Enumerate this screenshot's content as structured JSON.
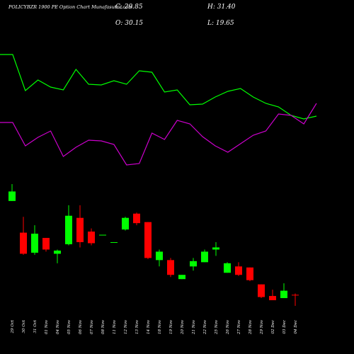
{
  "chart_data": {
    "type": "candlestick",
    "title": "POLICYBZR 1900 PE Option Chart Munafasutra.com",
    "annotations": [
      "C: 29.85",
      "O: 30.15",
      "H: 31.40",
      "L: 19.65"
    ],
    "categories": [
      "29 Oct",
      "30 Oct",
      "31 Oct",
      "01 Nov",
      "04 Nov",
      "05 Nov",
      "06 Nov",
      "07 Nov",
      "08 Nov",
      "11 Nov",
      "12 Nov",
      "13 Nov",
      "14 Nov",
      "18 Nov",
      "19 Nov",
      "20 Nov",
      "21 Nov",
      "22 Nov",
      "25 Nov",
      "26 Nov",
      "27 Nov",
      "28 Nov",
      "29 Nov",
      "02 Dec",
      "03 Dec",
      "04 Dec"
    ],
    "open": [
      119,
      89,
      70,
      84,
      69,
      78,
      103,
      90,
      87,
      80,
      92,
      107,
      99,
      63,
      63,
      45,
      57,
      61,
      73,
      51,
      57,
      56,
      40,
      29,
      27,
      30.15
    ],
    "high": [
      135,
      104,
      96,
      84,
      73,
      115,
      115,
      93,
      87,
      80,
      104,
      108,
      99,
      73,
      65,
      49,
      65,
      73,
      80,
      61,
      61,
      56,
      40,
      35,
      41,
      31.4
    ],
    "low": [
      119,
      68,
      68,
      71,
      60,
      77,
      75,
      77,
      87,
      80,
      91,
      96,
      64,
      57,
      47,
      45,
      53,
      61,
      67,
      51,
      48,
      43,
      27,
      25,
      27,
      19.65
    ],
    "close": [
      128,
      69,
      88,
      73,
      72,
      105,
      80,
      79,
      87,
      80,
      103,
      98,
      65,
      71,
      49,
      49,
      62,
      71,
      75,
      60,
      49,
      44,
      28,
      25,
      34,
      29.85
    ],
    "up_color": "#00ff00",
    "down_color": "#ff0000",
    "lines": [
      {
        "color": "#00ff00",
        "values": [
          173,
          173,
          122,
          137,
          127,
          123,
          152,
          131,
          130,
          136,
          131,
          150,
          148,
          120,
          123,
          102,
          103,
          113,
          121,
          125,
          113,
          104,
          99,
          87,
          82,
          86
        ]
      },
      {
        "color": "#cc00cc",
        "values": [
          77,
          77,
          44,
          56,
          65,
          29,
          42,
          52,
          51,
          46,
          17,
          19,
          62,
          53,
          80,
          75,
          57,
          44,
          35,
          47,
          59,
          65,
          89,
          87,
          75,
          104
        ]
      }
    ]
  }
}
